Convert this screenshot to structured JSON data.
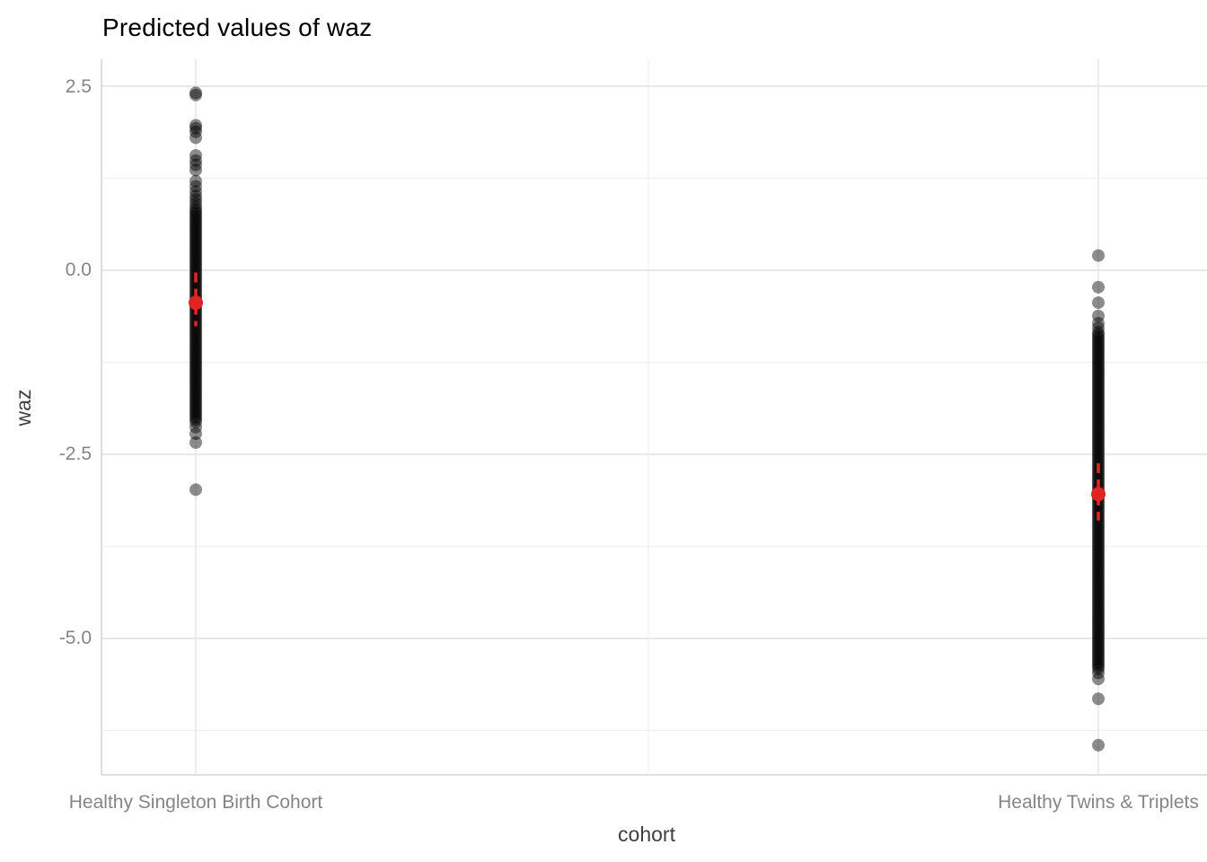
{
  "title": "Predicted values of waz",
  "chart_data": {
    "type": "scatter",
    "title": "Predicted values of waz",
    "xlabel": "cohort",
    "ylabel": "waz",
    "y_ticks": [
      "2.5",
      "0.0",
      "-2.5",
      "-5.0"
    ],
    "y_tick_values": [
      2.5,
      0.0,
      -2.5,
      -5.0
    ],
    "y_minor_ticks": [
      1.25,
      -1.25,
      -3.75,
      -6.25
    ],
    "ylim": [
      -6.9,
      2.75
    ],
    "grid": true,
    "legend": false,
    "point_style": {
      "shape": "circle",
      "color": "#000000",
      "opacity": 0.45,
      "radius_px": 7
    },
    "mean_style": {
      "color": "#e02424",
      "radius_px": 8,
      "ci_line": "dashed"
    },
    "categories": [
      {
        "label": "Healthy Singleton Birth Cohort",
        "points": [
          2.41,
          2.38,
          1.97,
          1.93,
          1.88,
          1.8,
          1.56,
          1.49,
          1.43,
          1.36,
          1.21,
          1.14,
          1.07,
          1.01,
          0.96,
          0.91,
          0.86,
          -2.13,
          -2.22,
          -2.34,
          -2.98
        ],
        "dense_runs": [
          [
            0.82,
            -2.06,
            0.032
          ]
        ],
        "mean": -0.44,
        "ci": [
          -0.03,
          -0.76
        ]
      },
      {
        "label": "Healthy Twins & Triplets",
        "points": [
          0.2,
          -0.23,
          -0.44,
          -0.62,
          -0.72,
          -0.78,
          -5.47,
          -5.55,
          -5.82,
          -6.45
        ],
        "dense_runs": [
          [
            -0.84,
            -5.42,
            0.032
          ]
        ],
        "mean": -3.04,
        "ci": [
          -2.62,
          -3.4
        ]
      }
    ],
    "colors": {
      "background": "#ffffff",
      "point": "#000000",
      "mean_point": "#e02424",
      "grid_major": "#e8e8e8",
      "grid_minor": "#f0f0f0",
      "axis_line": "#d6d6d6",
      "tick_label": "#858585",
      "axis_title": "#3f3f3f",
      "title": "#000000"
    }
  }
}
